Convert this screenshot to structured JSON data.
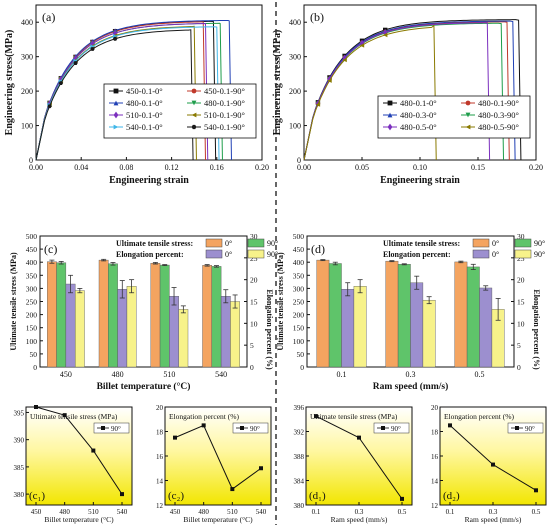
{
  "figure": {
    "divider_color": "#333333"
  },
  "chart_data": [
    {
      "id": "a",
      "type": "line",
      "panel_label": "(a)",
      "xlabel": "Engineering strain",
      "ylabel": "Engineering stress(MPa)",
      "xlim": [
        0,
        0.2
      ],
      "ylim": [
        0,
        450
      ],
      "xticks": [
        "0.00",
        "0.04",
        "0.08",
        "0.12",
        "0.16",
        "0.20"
      ],
      "xtick_values": [
        0,
        0.04,
        0.08,
        0.12,
        0.16,
        0.2
      ],
      "yticks": [
        "0",
        "100",
        "200",
        "300",
        "400"
      ],
      "ytick_values": [
        0,
        100,
        200,
        300,
        400
      ],
      "legend_position": "lower-right",
      "legend_columns": 2,
      "series": [
        {
          "name": "450-0.1-0°",
          "color": "#111111",
          "marker": "square",
          "uts": 404,
          "fracture": 0.157
        },
        {
          "name": "450-0.1-90°",
          "color": "#c0392b",
          "marker": "circle",
          "uts": 403,
          "fracture": 0.148
        },
        {
          "name": "480-0.1-0°",
          "color": "#1f3fb4",
          "marker": "triangle",
          "uts": 406,
          "fracture": 0.171
        },
        {
          "name": "480-0.1-90°",
          "color": "#1e9d4a",
          "marker": "triangle-down",
          "uts": 398,
          "fracture": 0.163
        },
        {
          "name": "510-0.1-0°",
          "color": "#7b2fbe",
          "marker": "diamond",
          "uts": 398,
          "fracture": 0.15
        },
        {
          "name": "510-0.1-90°",
          "color": "#8a7a00",
          "marker": "triangle-left",
          "uts": 390,
          "fracture": 0.14
        },
        {
          "name": "540-0.1-0°",
          "color": "#3fb6e8",
          "marker": "triangle-right",
          "uts": 388,
          "fracture": 0.16
        },
        {
          "name": "540-0.1-90°",
          "color": "#1a1a1a",
          "marker": "hexagon",
          "uts": 380,
          "fracture": 0.137
        }
      ]
    },
    {
      "id": "b",
      "type": "line",
      "panel_label": "(b)",
      "xlabel": "Engineering strain",
      "ylabel": "Engineering stress(MPa)",
      "xlim": [
        0,
        0.2
      ],
      "ylim": [
        0,
        450
      ],
      "xticks": [
        "0.00",
        "0.05",
        "0.10",
        "0.15",
        "0.20"
      ],
      "xtick_values": [
        0,
        0.05,
        0.1,
        0.15,
        0.2
      ],
      "yticks": [
        "0",
        "100",
        "200",
        "300",
        "400"
      ],
      "ytick_values": [
        0,
        100,
        200,
        300,
        400
      ],
      "legend_position": "lower-right",
      "legend_columns": 2,
      "series": [
        {
          "name": "480-0.1-0°",
          "color": "#111111",
          "marker": "square",
          "uts": 408,
          "fracture": 0.185
        },
        {
          "name": "480-0.1-90°",
          "color": "#c0392b",
          "marker": "circle",
          "uts": 402,
          "fracture": 0.175
        },
        {
          "name": "480-0.3-0°",
          "color": "#1f3fb4",
          "marker": "triangle",
          "uts": 404,
          "fracture": 0.18
        },
        {
          "name": "480-0.3-90°",
          "color": "#1e9d4a",
          "marker": "triangle-down",
          "uts": 398,
          "fracture": 0.17
        },
        {
          "name": "480-0.5-0°",
          "color": "#7b2fbe",
          "marker": "diamond",
          "uts": 400,
          "fracture": 0.158
        },
        {
          "name": "480-0.5-90°",
          "color": "#8a7a00",
          "marker": "triangle-left",
          "uts": 392,
          "fracture": 0.112
        }
      ]
    },
    {
      "id": "c",
      "type": "bar",
      "panel_label": "(c)",
      "xlabel": "Billet temperature (°C)",
      "ylabel": "Ultimate tensile stress (MPa)",
      "y2label": "Elongation percent (%)",
      "categories": [
        "450",
        "480",
        "510",
        "540"
      ],
      "ylim": [
        0,
        500
      ],
      "yticks": [
        "0",
        "50",
        "100",
        "150",
        "200",
        "250",
        "300",
        "350",
        "400",
        "450",
        "500"
      ],
      "ytick_values": [
        0,
        50,
        100,
        150,
        200,
        250,
        300,
        350,
        400,
        450,
        500
      ],
      "y2lim": [
        0,
        30
      ],
      "y2ticks": [
        "0",
        "5",
        "10",
        "15",
        "20",
        "25",
        "30"
      ],
      "y2tick_values": [
        0,
        5,
        10,
        15,
        20,
        25,
        30
      ],
      "legend_rows": [
        {
          "label": "Ultimate tensile stress:",
          "items": [
            {
              "name": "0°",
              "color": "#f4a460"
            },
            {
              "name": "90°",
              "color": "#5fc46a"
            }
          ]
        },
        {
          "label": "Elongation percent:",
          "items": [
            {
              "name": "0°",
              "color": "#9c8fcf"
            },
            {
              "name": "90°",
              "color": "#f7f28a"
            }
          ]
        }
      ],
      "series": [
        {
          "name": "UTS 0°",
          "axis": "left",
          "color": "#f4a460",
          "values": [
            402,
            408,
            396,
            388
          ],
          "errors": [
            6,
            3,
            3,
            3
          ]
        },
        {
          "name": "UTS 90°",
          "axis": "left",
          "color": "#5fc46a",
          "values": [
            398,
            394,
            389,
            384
          ],
          "errors": [
            5,
            5,
            2,
            3
          ]
        },
        {
          "name": "EL 0°",
          "axis": "right",
          "color": "#9c8fcf",
          "values": [
            19.0,
            17.8,
            16.2,
            16.2
          ],
          "errors": [
            2.0,
            2.0,
            2.0,
            1.5
          ]
        },
        {
          "name": "EL 90°",
          "axis": "right",
          "color": "#f7f28a",
          "values": [
            17.5,
            18.5,
            13.2,
            15.0
          ],
          "errors": [
            0.5,
            1.5,
            0.8,
            1.5
          ]
        }
      ]
    },
    {
      "id": "d",
      "type": "bar",
      "panel_label": "(d)",
      "xlabel": "Ram speed (mm/s)",
      "ylabel": "Ultimate tensile stress (MPa)",
      "y2label": "Elongation percent (%)",
      "categories": [
        "0.1",
        "0.3",
        "0.5"
      ],
      "ylim": [
        0,
        500
      ],
      "yticks": [
        "0",
        "50",
        "100",
        "150",
        "200",
        "250",
        "300",
        "350",
        "400",
        "450",
        "500"
      ],
      "ytick_values": [
        0,
        50,
        100,
        150,
        200,
        250,
        300,
        350,
        400,
        450,
        500
      ],
      "y2lim": [
        0,
        30
      ],
      "y2ticks": [
        "0",
        "5",
        "10",
        "15",
        "20",
        "25",
        "30"
      ],
      "y2tick_values": [
        0,
        5,
        10,
        15,
        20,
        25,
        30
      ],
      "legend_rows": [
        {
          "label": "Ultimate tensile stress:",
          "items": [
            {
              "name": "0°",
              "color": "#f4a460"
            },
            {
              "name": "90°",
              "color": "#5fc46a"
            }
          ]
        },
        {
          "label": "Elongation percent:",
          "items": [
            {
              "name": "0°",
              "color": "#9c8fcf"
            },
            {
              "name": "90°",
              "color": "#f7f28a"
            }
          ]
        }
      ],
      "series": [
        {
          "name": "UTS 0°",
          "axis": "left",
          "color": "#f4a460",
          "values": [
            408,
            404,
            401
          ],
          "errors": [
            2,
            2,
            3
          ]
        },
        {
          "name": "UTS 90°",
          "axis": "left",
          "color": "#5fc46a",
          "values": [
            395,
            392,
            382
          ],
          "errors": [
            5,
            2,
            10
          ]
        },
        {
          "name": "EL 0°",
          "axis": "right",
          "color": "#9c8fcf",
          "values": [
            17.8,
            19.3,
            18.1
          ],
          "errors": [
            1.5,
            1.5,
            0.5
          ]
        },
        {
          "name": "EL 90°",
          "axis": "right",
          "color": "#f7f28a",
          "values": [
            18.5,
            15.3,
            13.2
          ],
          "errors": [
            1.5,
            0.8,
            2.5
          ]
        }
      ]
    },
    {
      "id": "c1",
      "type": "line",
      "panel_label": "(c₁)",
      "title": "Ultimate tensile stress (MPa)",
      "xlabel": "Billet temperature (°C)",
      "x": [
        "450",
        "480",
        "510",
        "540"
      ],
      "values": [
        396,
        394.5,
        388,
        380
      ],
      "series_name": "90°",
      "ylim": [
        378,
        396
      ],
      "yticks": [
        "380",
        "385",
        "390",
        "395"
      ],
      "ytick_values": [
        380,
        385,
        390,
        395
      ],
      "gradient": [
        "#ffffff",
        "#fff7a0",
        "#f2e600"
      ]
    },
    {
      "id": "c2",
      "type": "line",
      "panel_label": "(c₂)",
      "title": "Elongation percent (%)",
      "xlabel": "Billet temperature (°C)",
      "x": [
        "450",
        "480",
        "510",
        "540"
      ],
      "values": [
        17.5,
        18.5,
        13.3,
        15.0
      ],
      "series_name": "90°",
      "ylim": [
        12,
        20
      ],
      "yticks": [
        "12",
        "14",
        "16",
        "18",
        "20"
      ],
      "ytick_values": [
        12,
        14,
        16,
        18,
        20
      ],
      "gradient": [
        "#ffffff",
        "#fff7a0",
        "#f2e600"
      ]
    },
    {
      "id": "d1",
      "type": "line",
      "panel_label": "(d₁)",
      "title": "Ultimate tensile stress (MPa)",
      "xlabel": "Ram speed (mm/s)",
      "x": [
        "0.1",
        "0.3",
        "0.5"
      ],
      "values": [
        394.5,
        391,
        381
      ],
      "series_name": "90°",
      "ylim": [
        380,
        396
      ],
      "yticks": [
        "380",
        "384",
        "388",
        "392",
        "396"
      ],
      "ytick_values": [
        380,
        384,
        388,
        392,
        396
      ],
      "gradient": [
        "#ffffff",
        "#fff7a0",
        "#f2e600"
      ]
    },
    {
      "id": "d2",
      "type": "line",
      "panel_label": "(d₂)",
      "title": "Elongation percent (%)",
      "xlabel": "Ram speed (mm/s)",
      "x": [
        "0.1",
        "0.3",
        "0.5"
      ],
      "values": [
        18.5,
        15.3,
        13.2
      ],
      "series_name": "90°",
      "ylim": [
        12,
        20
      ],
      "yticks": [
        "12",
        "14",
        "16",
        "18",
        "20"
      ],
      "ytick_values": [
        12,
        14,
        16,
        18,
        20
      ],
      "gradient": [
        "#ffffff",
        "#fff7a0",
        "#f2e600"
      ]
    }
  ]
}
